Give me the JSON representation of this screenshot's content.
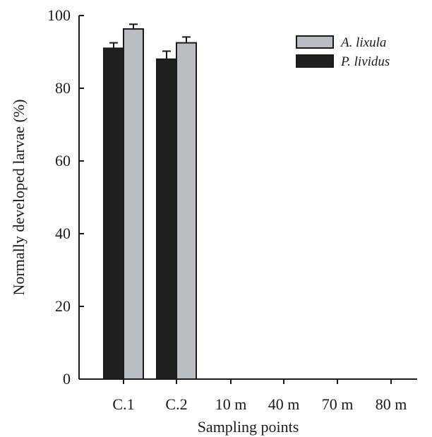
{
  "chart_data": {
    "type": "bar",
    "xlabel": "Sampling points",
    "ylabel": "Normally developed larvae (%)",
    "ylim": [
      0,
      100
    ],
    "yticks": [
      "0",
      "20",
      "40",
      "60",
      "80",
      "100"
    ],
    "categories": [
      "C.1",
      "C.2",
      "10 m",
      "40 m",
      "70 m",
      "80 m"
    ],
    "series": [
      {
        "name": "P. lividus",
        "values": [
          91,
          88,
          0,
          0,
          0,
          0
        ],
        "errors": [
          1.5,
          2.2,
          0,
          0,
          0,
          0
        ],
        "color": "#1f1f1f"
      },
      {
        "name": "A. lixula",
        "values": [
          96.3,
          92.5,
          0,
          0,
          0,
          0
        ],
        "errors": [
          1.3,
          1.6,
          0,
          0,
          0,
          0
        ],
        "color": "#b9bcc1"
      }
    ],
    "legend": {
      "placement": "top-right",
      "order": [
        "A. lixula",
        "P. lividus"
      ]
    },
    "grid": false
  }
}
